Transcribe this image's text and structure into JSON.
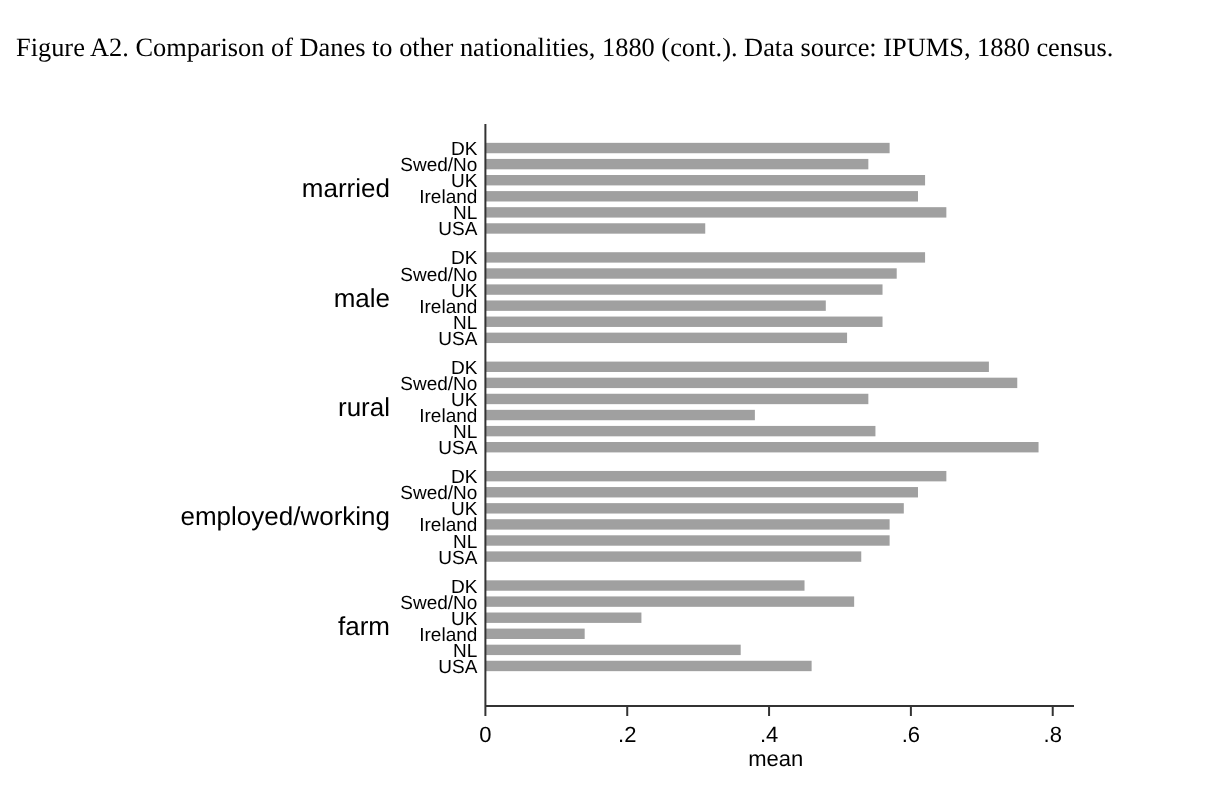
{
  "chart_data": {
    "type": "bar",
    "orientation": "horizontal",
    "title": "Figure A2. Comparison of Danes to other nationalities, 1880 (cont.). Data source: IPUMS, 1880 census.",
    "xlabel": "mean",
    "categories": [
      "DK",
      "Swed/No",
      "UK",
      "Ireland",
      "NL",
      "USA",
      "DK",
      "Swed/No",
      "UK",
      "Ireland",
      "NL",
      "USA",
      "DK",
      "Swed/No",
      "UK",
      "Ireland",
      "NL",
      "USA",
      "DK",
      "Swed/No",
      "UK",
      "Ireland",
      "NL",
      "USA",
      "DK",
      "Swed/No",
      "UK",
      "Ireland",
      "NL",
      "USA"
    ],
    "values": [
      0.57,
      0.54,
      0.62,
      0.61,
      0.65,
      0.31,
      0.62,
      0.58,
      0.56,
      0.48,
      0.56,
      0.51,
      0.71,
      0.75,
      0.54,
      0.38,
      0.55,
      0.78,
      0.65,
      0.61,
      0.59,
      0.57,
      0.57,
      0.53,
      0.45,
      0.52,
      0.22,
      0.14,
      0.36,
      0.46
    ],
    "color": "#a0a0a0",
    "annotations": [
      "married",
      "male",
      "rural",
      "employed/working",
      "farm"
    ],
    "xlim": [
      0,
      0.83
    ],
    "xticks": [
      0,
      {
        "value": 0.2,
        "label": ".2"
      },
      {
        "value": 0.4,
        "label": ".4"
      },
      {
        "value": 0.6,
        "label": ".6"
      },
      {
        "value": 0.8,
        "label": ".8"
      }
    ],
    "grid": false
  }
}
